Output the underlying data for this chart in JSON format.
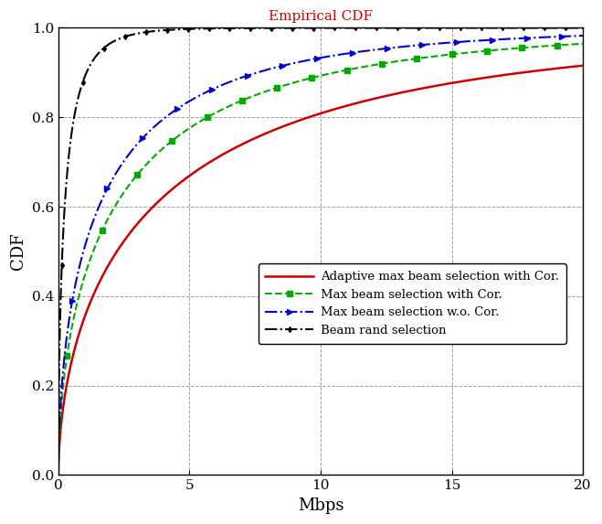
{
  "title": "Empirical CDF",
  "title_color": "#cc0000",
  "xlabel": "Mbps",
  "ylabel": "CDF",
  "xlim": [
    0,
    20
  ],
  "ylim": [
    0,
    1
  ],
  "xticks": [
    0,
    5,
    10,
    15,
    20
  ],
  "yticks": [
    0,
    0.2,
    0.4,
    0.6,
    0.8,
    1.0
  ],
  "curves": [
    {
      "label": "Adaptive max beam selection with Cor.",
      "color": "#cc0000",
      "linestyle": "-",
      "marker": null,
      "markersize": 4,
      "linewidth": 1.8,
      "weibull_scale": 4.2,
      "weibull_shape": 0.58
    },
    {
      "label": "Max beam selection with Cor.",
      "color": "#00aa00",
      "linestyle": "--",
      "marker": "s",
      "markersize": 4,
      "linewidth": 1.5,
      "weibull_scale": 2.5,
      "weibull_shape": 0.58
    },
    {
      "label": "Max beam selection w.o. Cor.",
      "color": "#0000cc",
      "linestyle": "-.",
      "marker": ">",
      "markersize": 4,
      "linewidth": 1.5,
      "weibull_scale": 1.8,
      "weibull_shape": 0.58
    },
    {
      "label": "Beam rand selection",
      "color": "#000000",
      "linestyle": "-.",
      "marker": "d",
      "markersize": 3,
      "linewidth": 1.5,
      "weibull_scale": 0.28,
      "weibull_shape": 0.62
    }
  ],
  "legend_loc": "lower right",
  "grid_color": "#888888",
  "grid_linestyle": "--",
  "background_color": "#ffffff",
  "figsize": [
    6.59,
    5.73
  ],
  "dpi": 100
}
